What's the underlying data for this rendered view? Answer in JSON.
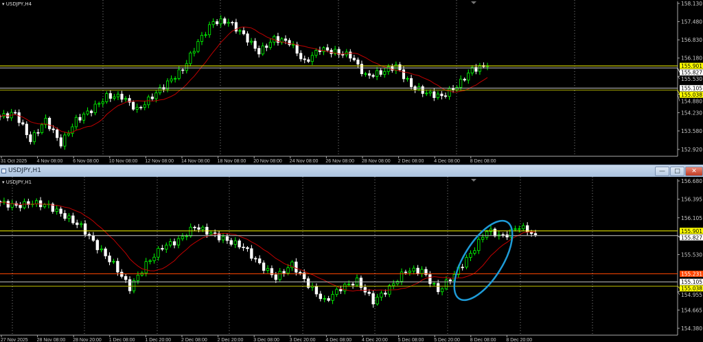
{
  "chart_data": [
    {
      "type": "candlestick",
      "symbol_label": "USDJPY,H4",
      "ylim": [
        152.92,
        158.13
      ],
      "y_ticks": [
        "158.130",
        "157.480",
        "156.830",
        "156.180",
        "155.530",
        "154.880",
        "154.230",
        "153.580",
        "152.920"
      ],
      "x_ticks": [
        "31 Oct 2025",
        "4 Nov 08:00",
        "6 Nov 08:00",
        "10 Nov 08:00",
        "12 Nov 08:00",
        "14 Nov 08:00",
        "18 Nov 08:00",
        "20 Nov 08:00",
        "24 Nov 08:00",
        "26 Nov 08:00",
        "28 Nov 08:00",
        "2 Dec 08:00",
        "4 Dec 08:00",
        "8 Dec 08:00"
      ],
      "close_keypoints": [
        154.09,
        154.21,
        153.24,
        153.97,
        153.12,
        153.97,
        154.33,
        154.81,
        154.81,
        154.33,
        154.81,
        155.3,
        155.78,
        156.75,
        157.48,
        157.48,
        157.0,
        156.39,
        156.87,
        156.75,
        156.02,
        156.51,
        156.39,
        156.27,
        155.54,
        155.66,
        155.9,
        155.18,
        154.93,
        154.81,
        155.18,
        155.78,
        155.9
      ],
      "hlines": [
        {
          "value": "155.901",
          "color": "#ffff00",
          "label_bg": "#ffff00"
        },
        {
          "value": "155.827",
          "color": "#c8c8c8",
          "label_bg": "#ffffff"
        },
        {
          "value": "155.105",
          "color": "#c8c8c8",
          "label_bg": "#ffffff"
        },
        {
          "value": "155.038",
          "color": "#b5b500",
          "label_bg": "#ffff00"
        }
      ],
      "bull_color": "#00ff00",
      "bear_color": "#ffffff",
      "ma_color": "#c00000"
    },
    {
      "type": "candlestick",
      "symbol_label": "USDJPY,H1",
      "ylim": [
        154.38,
        156.68
      ],
      "y_ticks": [
        "156.680",
        "156.395",
        "156.105",
        "155.530",
        "154.955",
        "154.665",
        "154.380"
      ],
      "x_ticks": [
        "27 Nov 2025",
        "28 Nov 08:00",
        "28 Nov 20:00",
        "1 Dec 08:00",
        "1 Dec 20:00",
        "2 Dec 08:00",
        "2 Dec 20:00",
        "3 Dec 08:00",
        "3 Dec 20:00",
        "4 Dec 08:00",
        "4 Dec 20:00",
        "5 Dec 08:00",
        "5 Dec 20:00",
        "8 Dec 08:00",
        "8 Dec 20:00"
      ],
      "close_keypoints": [
        156.34,
        156.29,
        156.34,
        156.29,
        156.13,
        155.97,
        155.65,
        155.38,
        155.01,
        155.38,
        155.65,
        155.75,
        155.97,
        155.86,
        155.75,
        155.65,
        155.38,
        155.17,
        155.38,
        155.06,
        154.8,
        155.01,
        155.12,
        154.8,
        155.01,
        155.28,
        155.28,
        154.96,
        155.22,
        155.54,
        155.91,
        155.81,
        155.97,
        155.84
      ],
      "hlines": [
        {
          "value": "155.901",
          "color": "#ffff00",
          "label_bg": "#ffff00"
        },
        {
          "value": "155.827",
          "color": "#c8c8c8",
          "label_bg": "#ffffff"
        },
        {
          "value": "155.231",
          "color": "#ff4500",
          "label_bg": "#ff4500"
        },
        {
          "value": "155.105",
          "color": "#c8c8c8",
          "label_bg": "#ffffff"
        },
        {
          "value": "155.038",
          "color": "#b5b500",
          "label_bg": "#ffff00"
        }
      ],
      "annotation": {
        "shape": "ellipse",
        "color": "#1e9bd7"
      },
      "bull_color": "#00ff00",
      "bear_color": "#ffffff",
      "ma_color": "#c00000"
    }
  ],
  "window": {
    "title": "USDJPY,H1",
    "minimize": "—",
    "maximize": "□",
    "close": "✕"
  }
}
